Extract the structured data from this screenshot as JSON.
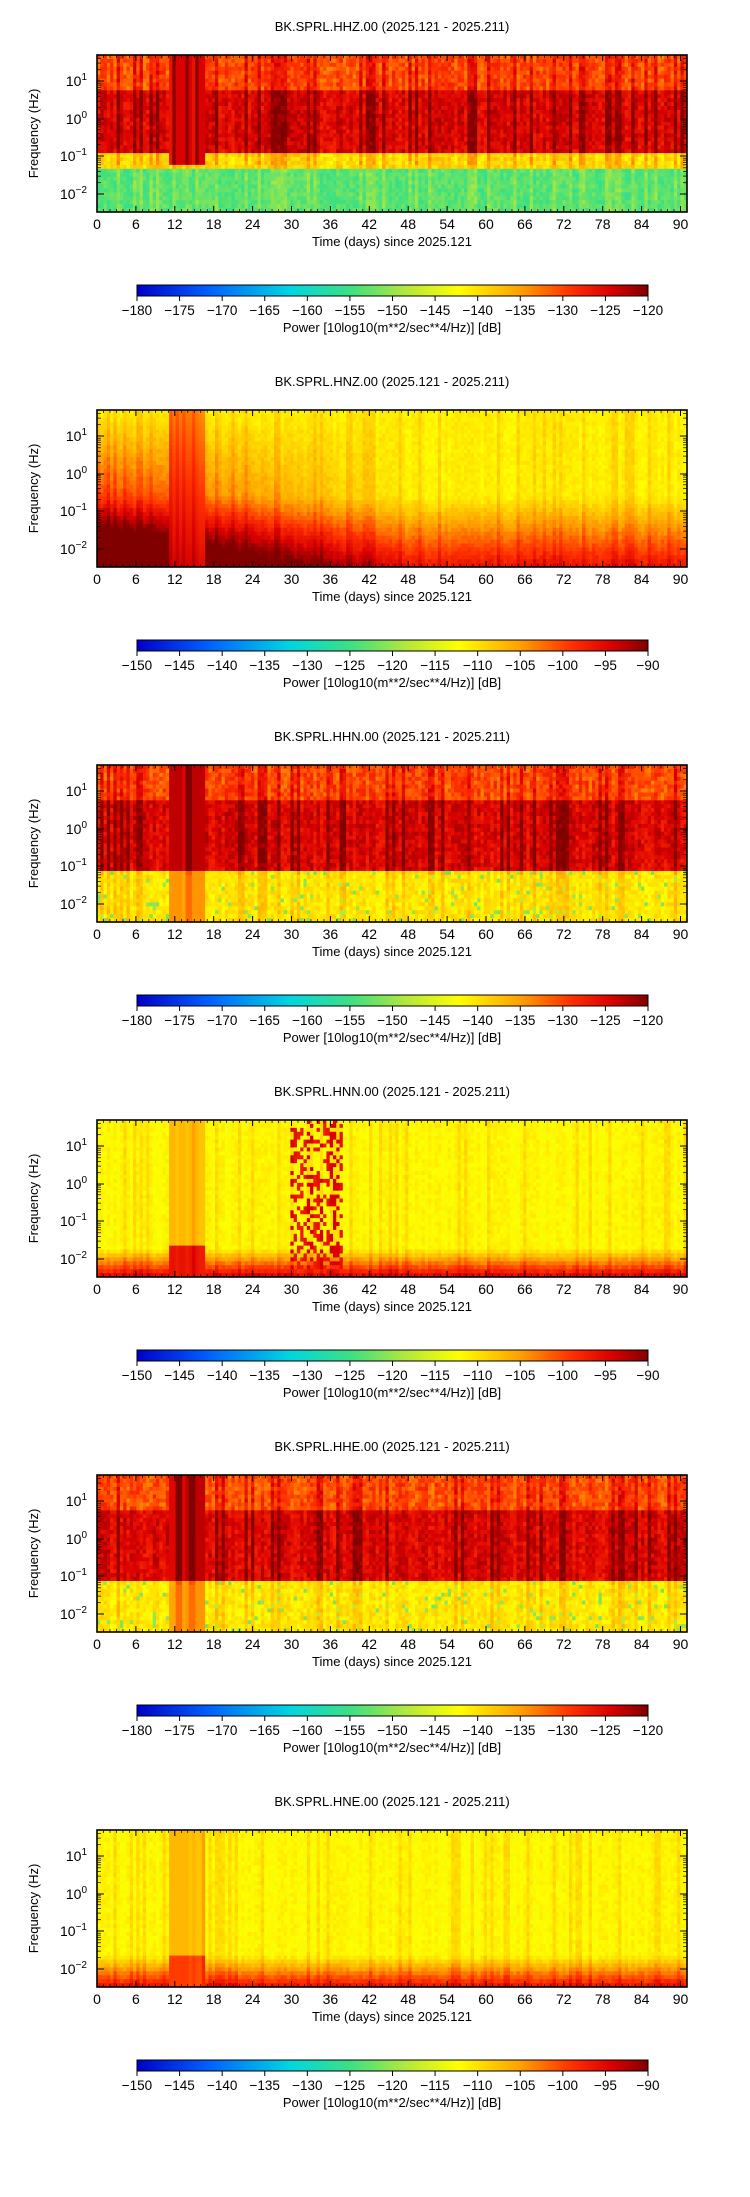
{
  "chart_data": [
    {
      "type": "heatmap",
      "title": "BK.SPRL.HHZ.00 (2025.121 - 2025.211)",
      "xlabel": "Time (days) since 2025.121",
      "ylabel": "Frequency (Hz)",
      "xlim": [
        0,
        91
      ],
      "x_ticks": [
        "0",
        "6",
        "12",
        "18",
        "24",
        "30",
        "36",
        "42",
        "48",
        "54",
        "60",
        "66",
        "72",
        "78",
        "84",
        "90"
      ],
      "y_ticks": [
        {
          "base": "10",
          "exp": "1"
        },
        {
          "base": "10",
          "exp": "0"
        },
        {
          "base": "10",
          "exp": "−1"
        },
        {
          "base": "10",
          "exp": "−2"
        }
      ],
      "y_scale": "log",
      "colorbar": {
        "label": "Power [10log10(m**2/sec**4/Hz)] [dB]",
        "ticks": [
          "−180",
          "−175",
          "−170",
          "−165",
          "−160",
          "−155",
          "−150",
          "−145",
          "−140",
          "−135",
          "−130",
          "−125",
          "−120"
        ],
        "range": [
          -180,
          -120
        ],
        "colormap": "jet-like (blue → cyan → green → yellow → red → dark red)"
      },
      "pattern": "hhz"
    },
    {
      "type": "heatmap",
      "title": "BK.SPRL.HNZ.00 (2025.121 - 2025.211)",
      "xlabel": "Time (days) since 2025.121",
      "ylabel": "Frequency (Hz)",
      "xlim": [
        0,
        91
      ],
      "x_ticks": [
        "0",
        "6",
        "12",
        "18",
        "24",
        "30",
        "36",
        "42",
        "48",
        "54",
        "60",
        "66",
        "72",
        "78",
        "84",
        "90"
      ],
      "y_ticks": [
        {
          "base": "10",
          "exp": "1"
        },
        {
          "base": "10",
          "exp": "0"
        },
        {
          "base": "10",
          "exp": "−1"
        },
        {
          "base": "10",
          "exp": "−2"
        }
      ],
      "y_scale": "log",
      "colorbar": {
        "label": "Power [10log10(m**2/sec**4/Hz)] [dB]",
        "ticks": [
          "−150",
          "−145",
          "−140",
          "−135",
          "−130",
          "−125",
          "−120",
          "−115",
          "−110",
          "−105",
          "−100",
          "−95",
          "−90"
        ],
        "range": [
          -150,
          -90
        ],
        "colormap": "jet-like (blue → cyan → green → yellow → red → dark red)"
      },
      "pattern": "hnz"
    },
    {
      "type": "heatmap",
      "title": "BK.SPRL.HHN.00 (2025.121 - 2025.211)",
      "xlabel": "Time (days) since 2025.121",
      "ylabel": "Frequency (Hz)",
      "xlim": [
        0,
        91
      ],
      "x_ticks": [
        "0",
        "6",
        "12",
        "18",
        "24",
        "30",
        "36",
        "42",
        "48",
        "54",
        "60",
        "66",
        "72",
        "78",
        "84",
        "90"
      ],
      "y_ticks": [
        {
          "base": "10",
          "exp": "1"
        },
        {
          "base": "10",
          "exp": "0"
        },
        {
          "base": "10",
          "exp": "−1"
        },
        {
          "base": "10",
          "exp": "−2"
        }
      ],
      "y_scale": "log",
      "colorbar": {
        "label": "Power [10log10(m**2/sec**4/Hz)] [dB]",
        "ticks": [
          "−180",
          "−175",
          "−170",
          "−165",
          "−160",
          "−155",
          "−150",
          "−145",
          "−140",
          "−135",
          "−130",
          "−125",
          "−120"
        ],
        "range": [
          -180,
          -120
        ],
        "colormap": "jet-like (blue → cyan → green → yellow → red → dark red)"
      },
      "pattern": "hhh"
    },
    {
      "type": "heatmap",
      "title": "BK.SPRL.HNN.00 (2025.121 - 2025.211)",
      "xlabel": "Time (days) since 2025.121",
      "ylabel": "Frequency (Hz)",
      "xlim": [
        0,
        91
      ],
      "x_ticks": [
        "0",
        "6",
        "12",
        "18",
        "24",
        "30",
        "36",
        "42",
        "48",
        "54",
        "60",
        "66",
        "72",
        "78",
        "84",
        "90"
      ],
      "y_ticks": [
        {
          "base": "10",
          "exp": "1"
        },
        {
          "base": "10",
          "exp": "0"
        },
        {
          "base": "10",
          "exp": "−1"
        },
        {
          "base": "10",
          "exp": "−2"
        }
      ],
      "y_scale": "log",
      "colorbar": {
        "label": "Power [10log10(m**2/sec**4/Hz)] [dB]",
        "ticks": [
          "−150",
          "−145",
          "−140",
          "−135",
          "−130",
          "−125",
          "−120",
          "−115",
          "−110",
          "−105",
          "−100",
          "−95",
          "−90"
        ],
        "range": [
          -150,
          -90
        ],
        "colormap": "jet-like (blue → cyan → green → yellow → red → dark red)"
      },
      "pattern": "hnn"
    },
    {
      "type": "heatmap",
      "title": "BK.SPRL.HHE.00 (2025.121 - 2025.211)",
      "xlabel": "Time (days) since 2025.121",
      "ylabel": "Frequency (Hz)",
      "xlim": [
        0,
        91
      ],
      "x_ticks": [
        "0",
        "6",
        "12",
        "18",
        "24",
        "30",
        "36",
        "42",
        "48",
        "54",
        "60",
        "66",
        "72",
        "78",
        "84",
        "90"
      ],
      "y_ticks": [
        {
          "base": "10",
          "exp": "1"
        },
        {
          "base": "10",
          "exp": "0"
        },
        {
          "base": "10",
          "exp": "−1"
        },
        {
          "base": "10",
          "exp": "−2"
        }
      ],
      "y_scale": "log",
      "colorbar": {
        "label": "Power [10log10(m**2/sec**4/Hz)] [dB]",
        "ticks": [
          "−180",
          "−175",
          "−170",
          "−165",
          "−160",
          "−155",
          "−150",
          "−145",
          "−140",
          "−135",
          "−130",
          "−125",
          "−120"
        ],
        "range": [
          -180,
          -120
        ],
        "colormap": "jet-like (blue → cyan → green → yellow → red → dark red)"
      },
      "pattern": "hhh"
    },
    {
      "type": "heatmap",
      "title": "BK.SPRL.HNE.00 (2025.121 - 2025.211)",
      "xlabel": "Time (days) since 2025.121",
      "ylabel": "Frequency (Hz)",
      "xlim": [
        0,
        91
      ],
      "x_ticks": [
        "0",
        "6",
        "12",
        "18",
        "24",
        "30",
        "36",
        "42",
        "48",
        "54",
        "60",
        "66",
        "72",
        "78",
        "84",
        "90"
      ],
      "y_ticks": [
        {
          "base": "10",
          "exp": "1"
        },
        {
          "base": "10",
          "exp": "0"
        },
        {
          "base": "10",
          "exp": "−1"
        },
        {
          "base": "10",
          "exp": "−2"
        }
      ],
      "y_scale": "log",
      "colorbar": {
        "label": "Power [10log10(m**2/sec**4/Hz)] [dB]",
        "ticks": [
          "−150",
          "−145",
          "−140",
          "−135",
          "−130",
          "−125",
          "−120",
          "−115",
          "−110",
          "−105",
          "−100",
          "−95",
          "−90"
        ],
        "range": [
          -150,
          -90
        ],
        "colormap": "jet-like (blue → cyan → green → yellow → red → dark red)"
      },
      "pattern": "hne"
    }
  ]
}
